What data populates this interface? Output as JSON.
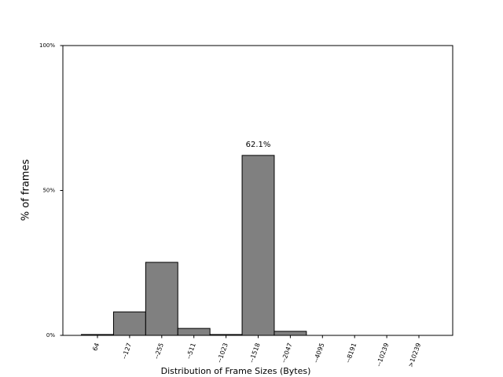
{
  "chart_data": {
    "type": "bar",
    "y_label": "% of frames",
    "x_label": "Distribution of Frame Sizes (Bytes)",
    "categories": [
      "64",
      "--127",
      "--255",
      "--511",
      "--1023",
      "--1518",
      "--2047",
      "--4095",
      "--8191",
      "--10239",
      ">10239"
    ],
    "values": [
      0.3,
      8.1,
      25.2,
      2.4,
      0.3,
      62.1,
      1.4,
      0,
      0,
      0,
      0
    ],
    "value_labels": [
      null,
      null,
      null,
      null,
      null,
      "62.1%",
      null,
      null,
      null,
      null,
      null
    ],
    "color": "#808080",
    "edge_color": "#000000",
    "ylim": [
      0,
      100
    ],
    "yticks": [
      {
        "value": 0,
        "label": "0%"
      },
      {
        "value": 50,
        "label": "50%"
      },
      {
        "value": 100,
        "label": "100%"
      }
    ],
    "grid": false
  }
}
